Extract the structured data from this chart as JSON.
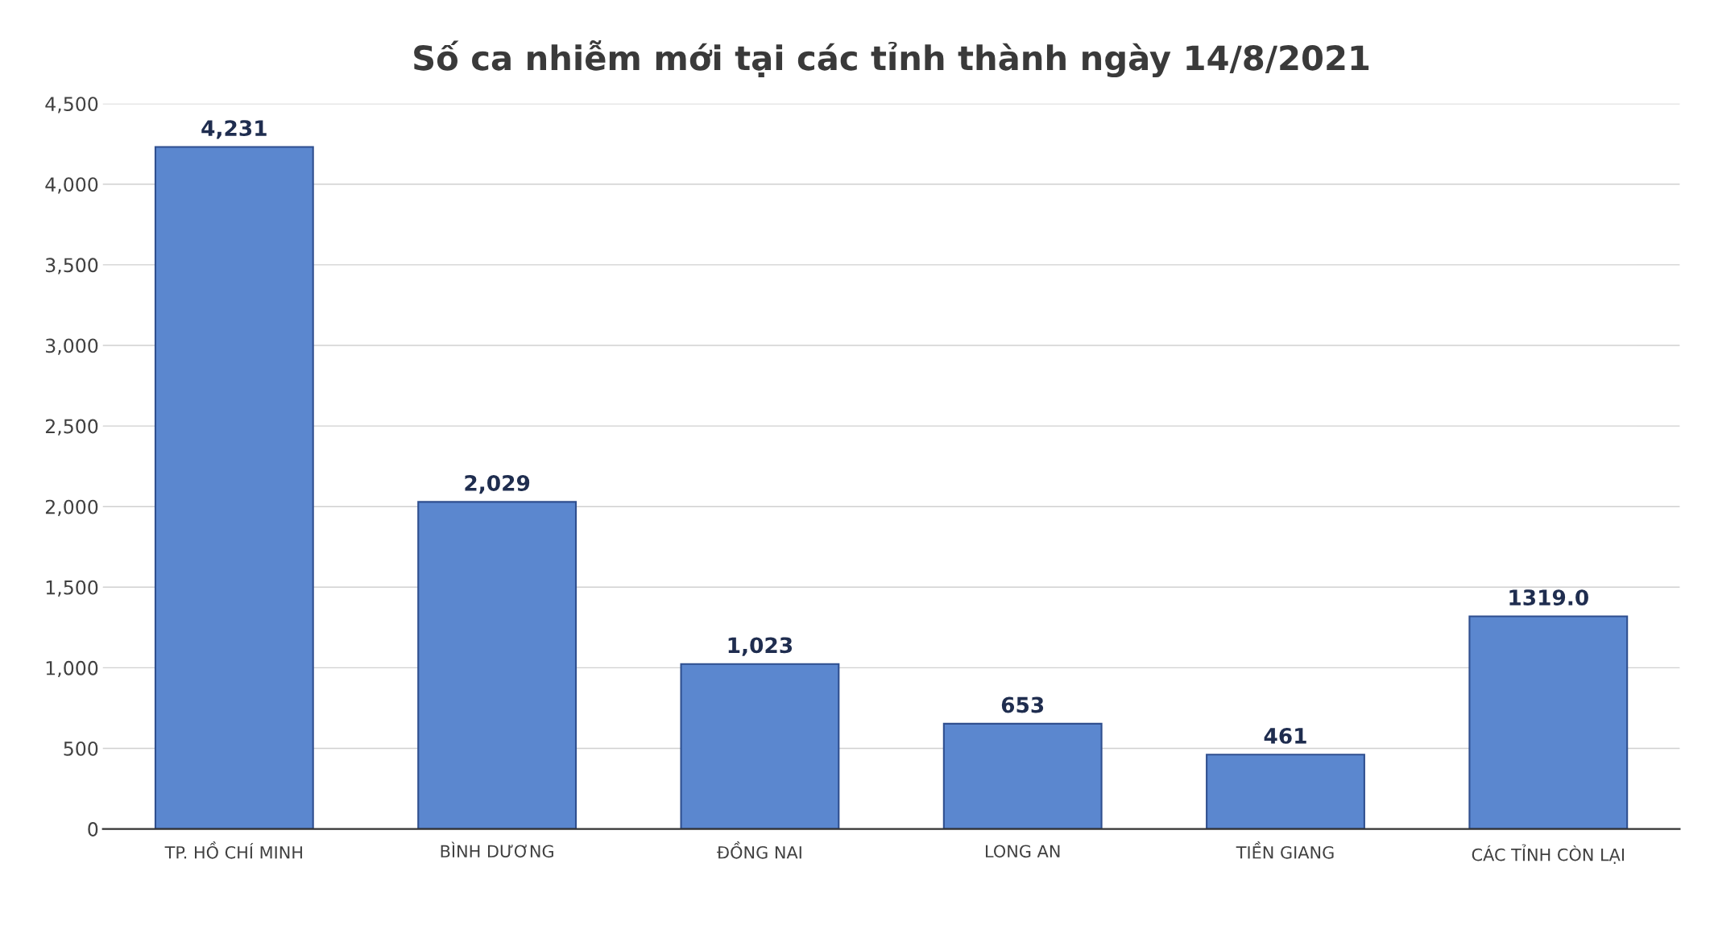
{
  "chart_data": {
    "type": "bar",
    "title": "Số ca nhiễm mới tại các tỉnh thành ngày 14/8/2021",
    "categories": [
      "TP. HỒ CHÍ MINH",
      "BÌNH DƯƠNG",
      "ĐỒNG NAI",
      "LONG AN",
      "TIỀN GIANG",
      "CÁC TỈNH CÒN LẠI"
    ],
    "values": [
      4231,
      2029,
      1023,
      653,
      461,
      1319
    ],
    "value_labels": [
      "4,231",
      "2,029",
      "1,023",
      "653",
      "461",
      "1319.0"
    ],
    "color": "#5b87cf",
    "ylim": [
      0,
      4500
    ],
    "yticks": [
      {
        "value": 0,
        "label": "0"
      },
      {
        "value": 500,
        "label": "500"
      },
      {
        "value": 1000,
        "label": "1,000"
      },
      {
        "value": 1500,
        "label": "1,500"
      },
      {
        "value": 2000,
        "label": "2,000"
      },
      {
        "value": 2500,
        "label": "2,500"
      },
      {
        "value": 3000,
        "label": "3,000"
      },
      {
        "value": 3500,
        "label": "3,500"
      },
      {
        "value": 4000,
        "label": "4,000"
      },
      {
        "value": 4500,
        "label": "4,500"
      }
    ],
    "grid": "y"
  }
}
